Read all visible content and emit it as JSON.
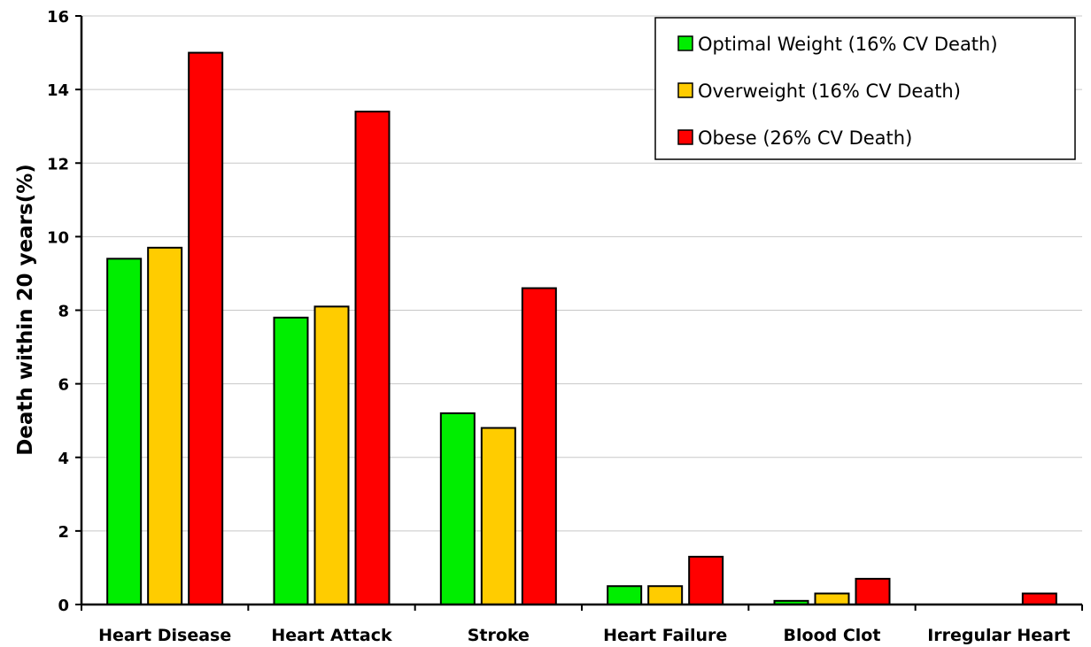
{
  "chart_data": {
    "type": "bar",
    "title": "",
    "xlabel": "",
    "ylabel": "Death within 20 years(%)",
    "ylim": [
      0,
      16
    ],
    "yticks": [
      "0",
      "2",
      "4",
      "6",
      "8",
      "10",
      "12",
      "14",
      "16"
    ],
    "grid": true,
    "legend_position": "top-right",
    "categories": [
      "Heart Disease",
      "Heart Attack",
      "Stroke",
      "Heart Failure",
      "Blood Clot",
      "Irregular Heart"
    ],
    "series": [
      {
        "name": "Optimal Weight (16% CV Death)",
        "color": "#00ee00",
        "values": [
          9.4,
          7.8,
          5.2,
          0.5,
          0.1,
          0
        ]
      },
      {
        "name": "Overweight (16% CV Death)",
        "color": "#ffcc00",
        "values": [
          9.7,
          8.1,
          4.8,
          0.5,
          0.3,
          0
        ]
      },
      {
        "name": "Obese (26% CV Death)",
        "color": "#ff0000",
        "values": [
          15.0,
          13.4,
          8.6,
          1.3,
          0.7,
          0.3
        ]
      }
    ]
  }
}
